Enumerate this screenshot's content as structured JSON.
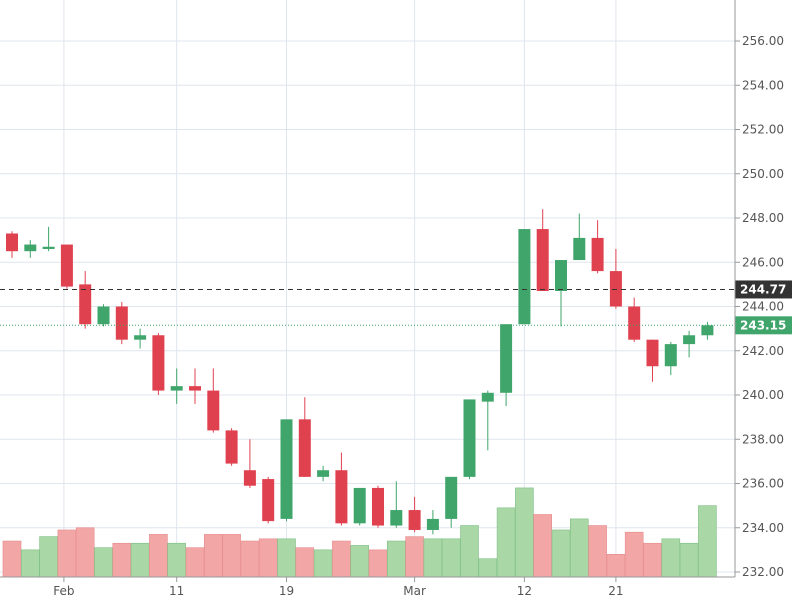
{
  "chart_data": {
    "type": "candlestick",
    "title": "",
    "xlabel": "",
    "ylabel": "",
    "ylim": [
      232,
      257
    ],
    "y_ticks": [
      "232.00",
      "234.00",
      "236.00",
      "238.00",
      "240.00",
      "242.00",
      "244.00",
      "246.00",
      "248.00",
      "250.00",
      "252.00",
      "254.00",
      "256.00"
    ],
    "x_tick_labels": [
      {
        "label": "Feb",
        "index": 3
      },
      {
        "label": "11",
        "index": 9
      },
      {
        "label": "19",
        "index": 15
      },
      {
        "label": "Mar",
        "index": 22
      },
      {
        "label": "12",
        "index": 28
      },
      {
        "label": "21",
        "index": 33
      }
    ],
    "up_color": "#3fa56b",
    "down_color": "#e0414f",
    "up_volume_color": "#a9d8a6",
    "down_volume_color": "#f3a6a6",
    "grid": true,
    "candles": [
      {
        "open": 247.3,
        "high": 247.4,
        "low": 246.2,
        "close": 246.5
      },
      {
        "open": 246.5,
        "high": 247.0,
        "low": 246.2,
        "close": 246.8
      },
      {
        "open": 246.6,
        "high": 247.6,
        "low": 246.5,
        "close": 246.7
      },
      {
        "open": 246.8,
        "high": 246.8,
        "low": 244.8,
        "close": 244.9
      },
      {
        "open": 245.0,
        "high": 245.6,
        "low": 243.0,
        "close": 243.2
      },
      {
        "open": 243.2,
        "high": 244.1,
        "low": 243.1,
        "close": 244.0
      },
      {
        "open": 244.0,
        "high": 244.2,
        "low": 242.3,
        "close": 242.5
      },
      {
        "open": 242.5,
        "high": 243.0,
        "low": 242.1,
        "close": 242.7
      },
      {
        "open": 242.7,
        "high": 242.8,
        "low": 240.0,
        "close": 240.2
      },
      {
        "open": 240.2,
        "high": 241.2,
        "low": 239.6,
        "close": 240.4
      },
      {
        "open": 240.4,
        "high": 241.2,
        "low": 239.6,
        "close": 240.2
      },
      {
        "open": 240.2,
        "high": 241.2,
        "low": 238.3,
        "close": 238.4
      },
      {
        "open": 238.4,
        "high": 238.5,
        "low": 236.8,
        "close": 236.9
      },
      {
        "open": 236.6,
        "high": 238.0,
        "low": 235.8,
        "close": 235.9
      },
      {
        "open": 236.2,
        "high": 236.3,
        "low": 234.2,
        "close": 234.3
      },
      {
        "open": 234.4,
        "high": 238.9,
        "low": 234.3,
        "close": 238.9
      },
      {
        "open": 238.9,
        "high": 239.9,
        "low": 236.3,
        "close": 236.3
      },
      {
        "open": 236.3,
        "high": 236.8,
        "low": 236.1,
        "close": 236.6
      },
      {
        "open": 236.6,
        "high": 237.4,
        "low": 234.1,
        "close": 234.2
      },
      {
        "open": 234.2,
        "high": 235.8,
        "low": 234.1,
        "close": 235.8
      },
      {
        "open": 235.8,
        "high": 235.9,
        "low": 234.0,
        "close": 234.1
      },
      {
        "open": 234.1,
        "high": 236.1,
        "low": 234.0,
        "close": 234.8
      },
      {
        "open": 234.8,
        "high": 235.4,
        "low": 233.8,
        "close": 233.9
      },
      {
        "open": 233.9,
        "high": 234.8,
        "low": 233.7,
        "close": 234.4
      },
      {
        "open": 234.4,
        "high": 236.3,
        "low": 234.0,
        "close": 236.3
      },
      {
        "open": 236.3,
        "high": 239.8,
        "low": 236.2,
        "close": 239.8
      },
      {
        "open": 239.7,
        "high": 240.2,
        "low": 237.5,
        "close": 240.1
      },
      {
        "open": 240.1,
        "high": 243.2,
        "low": 239.5,
        "close": 243.2
      },
      {
        "open": 243.2,
        "high": 247.5,
        "low": 243.2,
        "close": 247.5
      },
      {
        "open": 247.5,
        "high": 248.4,
        "low": 244.7,
        "close": 244.7
      },
      {
        "open": 244.7,
        "high": 246.1,
        "low": 243.1,
        "close": 246.1
      },
      {
        "open": 246.1,
        "high": 248.2,
        "low": 246.1,
        "close": 247.1
      },
      {
        "open": 247.1,
        "high": 247.9,
        "low": 245.5,
        "close": 245.6
      },
      {
        "open": 245.6,
        "high": 246.6,
        "low": 243.9,
        "close": 244.0
      },
      {
        "open": 244.0,
        "high": 244.4,
        "low": 242.4,
        "close": 242.5
      },
      {
        "open": 242.5,
        "high": 242.5,
        "low": 240.6,
        "close": 241.3
      },
      {
        "open": 241.3,
        "high": 242.4,
        "low": 240.9,
        "close": 242.3
      },
      {
        "open": 242.3,
        "high": 242.9,
        "low": 241.7,
        "close": 242.7
      },
      {
        "open": 242.7,
        "high": 243.3,
        "low": 242.5,
        "close": 243.15
      }
    ],
    "volume_tops_price": [
      233.4,
      233.0,
      233.6,
      233.9,
      234.0,
      233.1,
      233.3,
      233.3,
      233.7,
      233.3,
      233.1,
      233.7,
      233.7,
      233.4,
      233.5,
      233.5,
      233.1,
      233.0,
      233.4,
      233.2,
      233.0,
      233.4,
      233.6,
      233.5,
      233.5,
      234.1,
      232.6,
      234.9,
      235.8,
      234.6,
      233.9,
      234.4,
      234.1,
      232.8,
      233.8,
      233.3,
      233.5,
      233.3,
      235.0
    ],
    "reference_lines": [
      {
        "value": 244.77,
        "label": "244.77",
        "style": "dashed",
        "color": "#333333"
      },
      {
        "value": 243.15,
        "label": "243.15",
        "style": "dotted",
        "color": "#3fa56b"
      }
    ]
  }
}
